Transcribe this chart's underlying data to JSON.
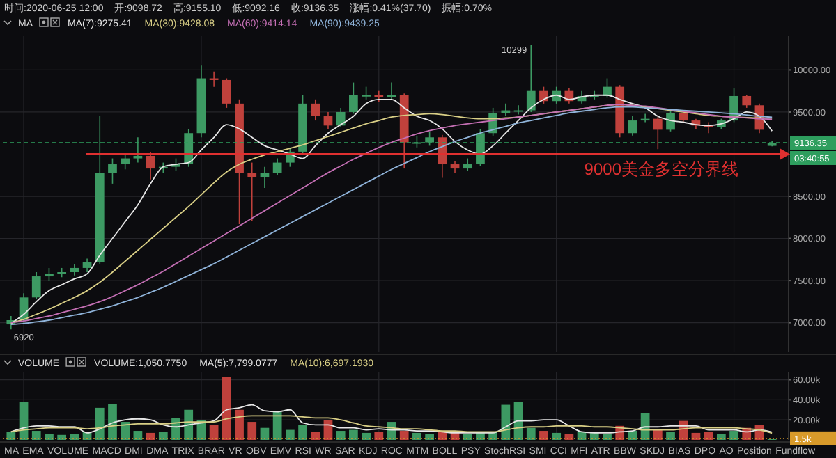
{
  "chart_data": [
    {
      "type": "candlestick",
      "title": "MA",
      "categories": [
        null,
        null,
        null,
        null,
        null,
        null,
        null,
        null,
        null,
        null,
        null,
        null,
        null,
        null,
        null,
        null,
        null,
        null,
        null,
        null,
        null,
        null,
        null,
        null,
        null,
        null,
        null,
        null,
        null,
        null,
        null,
        null,
        null,
        null,
        null,
        null,
        null,
        null,
        null,
        null,
        null,
        null,
        null,
        null,
        null,
        null,
        null,
        null,
        null,
        null,
        null,
        null,
        null,
        null,
        null,
        null,
        null,
        null,
        null,
        null,
        null
      ],
      "ohlc": [
        [
          6980,
          7080,
          6920,
          7030
        ],
        [
          7030,
          7350,
          7000,
          7300
        ],
        [
          7300,
          7600,
          7280,
          7550
        ],
        [
          7550,
          7650,
          7500,
          7580
        ],
        [
          7580,
          7650,
          7540,
          7600
        ],
        [
          7600,
          7700,
          7560,
          7650
        ],
        [
          7650,
          7760,
          7600,
          7720
        ],
        [
          7720,
          9450,
          7700,
          8780
        ],
        [
          8780,
          8950,
          8650,
          8880
        ],
        [
          8880,
          9000,
          8820,
          8950
        ],
        [
          8950,
          9200,
          8900,
          8980
        ],
        [
          8980,
          9020,
          8700,
          8830
        ],
        [
          8830,
          8900,
          8780,
          8850
        ],
        [
          8850,
          8950,
          8800,
          8880
        ],
        [
          8880,
          9300,
          8850,
          9250
        ],
        [
          9250,
          10050,
          9200,
          9900
        ],
        [
          9900,
          9980,
          9800,
          9880
        ],
        [
          9880,
          9900,
          9550,
          9600
        ],
        [
          9600,
          9650,
          8170,
          8780
        ],
        [
          8780,
          8900,
          8210,
          8730
        ],
        [
          8730,
          8850,
          8600,
          8780
        ],
        [
          8780,
          8950,
          8750,
          8900
        ],
        [
          8900,
          9080,
          8850,
          9030
        ],
        [
          9030,
          9700,
          9000,
          9600
        ],
        [
          9600,
          9650,
          9400,
          9450
        ],
        [
          9450,
          9500,
          9300,
          9340
        ],
        [
          9340,
          9550,
          9320,
          9500
        ],
        [
          9500,
          9850,
          9480,
          9700
        ],
        [
          9700,
          9800,
          9650,
          9700
        ],
        [
          9700,
          9750,
          9620,
          9680
        ],
        [
          9680,
          9850,
          9650,
          9700
        ],
        [
          9700,
          9720,
          8830,
          9140
        ],
        [
          9140,
          9220,
          9080,
          9140
        ],
        [
          9140,
          9260,
          9100,
          9200
        ],
        [
          9200,
          9230,
          8720,
          8880
        ],
        [
          8880,
          8920,
          8780,
          8830
        ],
        [
          8830,
          8950,
          8800,
          8880
        ],
        [
          8880,
          9300,
          8860,
          9250
        ],
        [
          9250,
          9550,
          9220,
          9490
        ],
        [
          9490,
          9600,
          9450,
          9520
        ],
        [
          9520,
          9580,
          9470,
          9520
        ],
        [
          9520,
          10299,
          9500,
          9750
        ],
        [
          9750,
          9800,
          9600,
          9630
        ],
        [
          9630,
          9800,
          9600,
          9750
        ],
        [
          9750,
          9780,
          9600,
          9630
        ],
        [
          9630,
          9750,
          9600,
          9690
        ],
        [
          9690,
          9750,
          9650,
          9690
        ],
        [
          9690,
          9900,
          9670,
          9800
        ],
        [
          9800,
          9820,
          9200,
          9250
        ],
        [
          9250,
          9450,
          9220,
          9400
        ],
        [
          9400,
          9480,
          9380,
          9420
        ],
        [
          9420,
          9440,
          9060,
          9290
        ],
        [
          9290,
          9520,
          9270,
          9490
        ],
        [
          9490,
          9520,
          9380,
          9400
        ],
        [
          9400,
          9420,
          9300,
          9340
        ],
        [
          9340,
          9380,
          9250,
          9320
        ],
        [
          9320,
          9420,
          9300,
          9400
        ],
        [
          9400,
          9780,
          9380,
          9690
        ],
        [
          9690,
          9700,
          9550,
          9580
        ],
        [
          9580,
          9600,
          9250,
          9290
        ],
        [
          9098.72,
          9155.1,
          9092.16,
          9136.35
        ]
      ],
      "colors": [
        "#3d9a63",
        "#3d9a63",
        "#3d9a63",
        "#3d9a63",
        "#3d9a63",
        "#3d9a63",
        "#3d9a63",
        "#3d9a63",
        "#3d9a63",
        "#3d9a63",
        "#3d9a63",
        "#c0413c",
        "#3d9a63",
        "#3d9a63",
        "#3d9a63",
        "#3d9a63",
        "#c0413c",
        "#c0413c",
        "#c0413c",
        "#c0413c",
        "#3d9a63",
        "#3d9a63",
        "#3d9a63",
        "#3d9a63",
        "#c0413c",
        "#c0413c",
        "#3d9a63",
        "#3d9a63",
        "#3d9a63",
        "#c0413c",
        "#3d9a63",
        "#c0413c",
        "#3d9a63",
        "#3d9a63",
        "#c0413c",
        "#c0413c",
        "#3d9a63",
        "#3d9a63",
        "#3d9a63",
        "#3d9a63",
        "#3d9a63",
        "#3d9a63",
        "#c0413c",
        "#3d9a63",
        "#c0413c",
        "#3d9a63",
        "#3d9a63",
        "#3d9a63",
        "#c0413c",
        "#3d9a63",
        "#3d9a63",
        "#c0413c",
        "#3d9a63",
        "#c0413c",
        "#c0413c",
        "#c0413c",
        "#3d9a63",
        "#3d9a63",
        "#c0413c",
        "#c0413c",
        "#3d9a63"
      ],
      "series": [
        {
          "type": "line",
          "name": "MA(7):9275.41",
          "color": "#e6e6e6",
          "values": [
            6990,
            7100,
            7250,
            7380,
            7450,
            7520,
            7580,
            7800,
            8000,
            8200,
            8400,
            8650,
            8850,
            8880,
            8900,
            9050,
            9200,
            9350,
            9300,
            9200,
            9100,
            9050,
            9000,
            8950,
            9100,
            9250,
            9350,
            9450,
            9600,
            9650,
            9650,
            9550,
            9450,
            9400,
            9300,
            9150,
            9050,
            9000,
            9100,
            9250,
            9400,
            9550,
            9650,
            9700,
            9650,
            9680,
            9700,
            9700,
            9650,
            9600,
            9550,
            9450,
            9400,
            9380,
            9350,
            9340,
            9360,
            9420,
            9500,
            9450,
            9275.41
          ]
        },
        {
          "type": "line",
          "name": "MA(30):9428.08",
          "color": "#d9cf86",
          "values": [
            7000,
            7040,
            7100,
            7160,
            7230,
            7300,
            7380,
            7480,
            7600,
            7730,
            7860,
            7990,
            8120,
            8250,
            8380,
            8520,
            8660,
            8790,
            8880,
            8940,
            8990,
            9030,
            9070,
            9110,
            9160,
            9210,
            9260,
            9310,
            9360,
            9400,
            9440,
            9460,
            9470,
            9480,
            9470,
            9450,
            9430,
            9420,
            9420,
            9430,
            9440,
            9460,
            9480,
            9500,
            9520,
            9540,
            9560,
            9580,
            9590,
            9580,
            9560,
            9540,
            9520,
            9500,
            9480,
            9460,
            9450,
            9440,
            9435,
            9430,
            9428.08
          ]
        },
        {
          "type": "line",
          "name": "MA(60):9414.14",
          "color": "#c46fb4",
          "values": [
            7000,
            7020,
            7050,
            7080,
            7120,
            7160,
            7200,
            7250,
            7310,
            7380,
            7450,
            7530,
            7610,
            7700,
            7790,
            7880,
            7970,
            8060,
            8150,
            8240,
            8330,
            8420,
            8510,
            8600,
            8690,
            8780,
            8860,
            8940,
            9010,
            9080,
            9140,
            9190,
            9240,
            9280,
            9310,
            9340,
            9360,
            9380,
            9400,
            9420,
            9440,
            9460,
            9480,
            9500,
            9520,
            9540,
            9560,
            9580,
            9590,
            9580,
            9570,
            9550,
            9530,
            9510,
            9490,
            9470,
            9450,
            9440,
            9430,
            9420,
            9414.14
          ]
        },
        {
          "type": "line",
          "name": "MA(90):9439.25",
          "color": "#8fb3d9",
          "values": [
            6980,
            6990,
            7010,
            7030,
            7060,
            7090,
            7120,
            7160,
            7200,
            7250,
            7300,
            7360,
            7420,
            7490,
            7560,
            7630,
            7700,
            7780,
            7860,
            7940,
            8020,
            8100,
            8180,
            8260,
            8340,
            8420,
            8500,
            8580,
            8660,
            8740,
            8820,
            8890,
            8960,
            9030,
            9090,
            9150,
            9200,
            9250,
            9290,
            9330,
            9370,
            9400,
            9430,
            9460,
            9490,
            9510,
            9530,
            9550,
            9560,
            9560,
            9550,
            9540,
            9530,
            9520,
            9510,
            9500,
            9490,
            9480,
            9465,
            9450,
            9439.25
          ]
        }
      ],
      "ylim": [
        6650,
        10400
      ],
      "yticks": [
        {
          "value": 7000,
          "label": "7000.00"
        },
        {
          "value": 7500,
          "label": "7500.00"
        },
        {
          "value": 8000,
          "label": "8000.00"
        },
        {
          "value": 8500,
          "label": "8500.00"
        },
        {
          "value": 9500,
          "label": "9500.00"
        },
        {
          "value": 10000,
          "label": "10000.00"
        }
      ],
      "grid": true,
      "legend": "top",
      "ref_lines": [
        {
          "axis": "y",
          "value": 9136.35,
          "label": "9136.35",
          "color": "#2e9e5e",
          "line_style": "dashed"
        },
        {
          "axis": "y",
          "value": 9000,
          "label": "9000美金多空分界线",
          "color": "#e03030",
          "line_style": "solid"
        }
      ],
      "annotations": [
        "时间:2020-06-25 12:00",
        "开:9098.72",
        "高:9155.10",
        "低:9092.16",
        "收:9136.35",
        "涨幅:0.41%(37.70)",
        "振幅:0.70%",
        "10299",
        "6920",
        "03:40:55"
      ]
    },
    {
      "type": "bar",
      "title": "VOLUME",
      "categories": [
        null,
        null,
        null,
        null,
        null,
        null,
        null,
        null,
        null,
        null,
        null,
        null,
        null,
        null,
        null,
        null,
        null,
        null,
        null,
        null,
        null,
        null,
        null,
        null,
        null,
        null,
        null,
        null,
        null,
        null,
        null,
        null,
        null,
        null,
        null,
        null,
        null,
        null,
        null,
        null,
        null,
        null,
        null,
        null,
        null,
        null,
        null,
        null,
        null,
        null,
        null,
        null,
        null,
        null,
        null,
        null,
        null,
        null,
        null,
        null,
        null
      ],
      "series": [
        {
          "type": "bar",
          "colors": [
            "#3d9a63",
            "#3d9a63",
            "#3d9a63",
            "#3d9a63",
            "#3d9a63",
            "#3d9a63",
            "#3d9a63",
            "#3d9a63",
            "#3d9a63",
            "#3d9a63",
            "#3d9a63",
            "#c0413c",
            "#3d9a63",
            "#3d9a63",
            "#3d9a63",
            "#3d9a63",
            "#c0413c",
            "#c0413c",
            "#c0413c",
            "#c0413c",
            "#3d9a63",
            "#3d9a63",
            "#3d9a63",
            "#3d9a63",
            "#c0413c",
            "#c0413c",
            "#3d9a63",
            "#3d9a63",
            "#3d9a63",
            "#c0413c",
            "#3d9a63",
            "#c0413c",
            "#3d9a63",
            "#3d9a63",
            "#c0413c",
            "#c0413c",
            "#3d9a63",
            "#3d9a63",
            "#3d9a63",
            "#3d9a63",
            "#3d9a63",
            "#3d9a63",
            "#c0413c",
            "#3d9a63",
            "#c0413c",
            "#3d9a63",
            "#3d9a63",
            "#3d9a63",
            "#c0413c",
            "#3d9a63",
            "#3d9a63",
            "#c0413c",
            "#3d9a63",
            "#c0413c",
            "#c0413c",
            "#c0413c",
            "#3d9a63",
            "#3d9a63",
            "#c0413c",
            "#c0413c",
            "#3d9a63"
          ],
          "values": [
            8000,
            38000,
            9000,
            6000,
            5000,
            6000,
            8000,
            32000,
            36000,
            18000,
            9000,
            7000,
            8000,
            22000,
            30000,
            20000,
            15000,
            63000,
            30000,
            18000,
            12000,
            28000,
            10000,
            15000,
            8000,
            20000,
            9000,
            10000,
            7000,
            8000,
            18000,
            9000,
            7000,
            6000,
            8000,
            7000,
            6000,
            7000,
            8000,
            35000,
            38000,
            12000,
            9000,
            7000,
            6000,
            8000,
            7000,
            6000,
            14000,
            9000,
            27000,
            10000,
            8000,
            19000,
            7000,
            8000,
            6000,
            9000,
            12000,
            15000,
            1050.775
          ]
        },
        {
          "type": "line",
          "name": "MA(5):7,799.0777",
          "color": "#e6e6e6",
          "values": [
            8000,
            12000,
            14000,
            14000,
            13000,
            13000,
            7000,
            11000,
            17000,
            20000,
            21000,
            20000,
            15000,
            13000,
            15000,
            17000,
            19000,
            30000,
            32000,
            35000,
            29000,
            28000,
            30000,
            17000,
            15000,
            15000,
            12000,
            12000,
            10000,
            11000,
            10000,
            10000,
            9000,
            9000,
            8000,
            7000,
            7000,
            7000,
            7000,
            13000,
            19000,
            19000,
            20000,
            20000,
            14000,
            8000,
            7000,
            7000,
            8000,
            9000,
            13000,
            13000,
            14000,
            14000,
            14000,
            10000,
            10000,
            10000,
            8000,
            10000,
            7799.0777
          ]
        },
        {
          "type": "line",
          "name": "MA(10):6,697.1930",
          "color": "#d9cf86",
          "values": [
            8000,
            10000,
            11000,
            12000,
            12000,
            12000,
            11000,
            12000,
            14000,
            15000,
            16000,
            16000,
            16000,
            17000,
            18000,
            18000,
            18000,
            21000,
            23000,
            24000,
            24000,
            24000,
            24000,
            23000,
            22000,
            22000,
            20000,
            17000,
            14000,
            13000,
            12000,
            11000,
            11000,
            10000,
            9000,
            9000,
            8000,
            8000,
            8000,
            10000,
            12000,
            13000,
            13000,
            14000,
            14000,
            14000,
            13000,
            13000,
            12000,
            11000,
            10000,
            10000,
            10000,
            11000,
            12000,
            12000,
            12000,
            12000,
            11000,
            10000,
            6697.193
          ]
        }
      ],
      "ylim": [
        0,
        68000
      ],
      "yticks": [
        {
          "value": 20000,
          "label": "20.00k"
        },
        {
          "value": 40000,
          "label": "40.00k"
        },
        {
          "value": 60000,
          "label": "60.00k"
        }
      ],
      "grid": true,
      "legend": "top",
      "ref_lines": [
        {
          "axis": "y",
          "value": 1500,
          "label": "1.5k",
          "color": "#d89a2a",
          "line_style": "dotted"
        }
      ],
      "annotations": [
        "VOLUME:1,050.7750",
        "MA",
        "EMA",
        "VOLUME",
        "MACD",
        "DMI",
        "DMA",
        "TRIX",
        "BRAR",
        "VR",
        "OBV",
        "EMV",
        "RSI",
        "WR",
        "SAR",
        "KDJ",
        "ROC",
        "MTM",
        "BOLL",
        "PSY",
        "StochRSI",
        "SMI",
        "CCI",
        "MFI",
        "ATR",
        "BBW",
        "SKDJ",
        "BIAS",
        "DPO",
        "AO",
        "Position",
        "Fundflow"
      ]
    }
  ]
}
